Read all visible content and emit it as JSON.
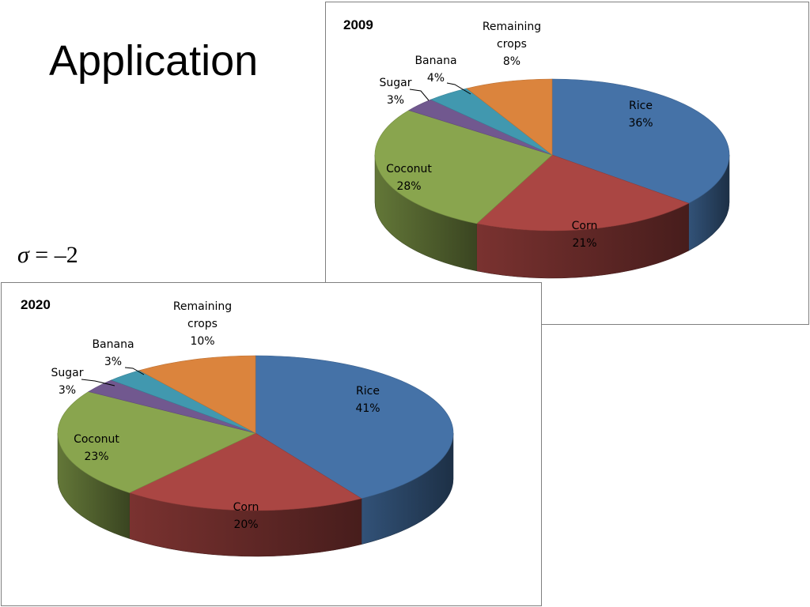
{
  "slide": {
    "title": "Application",
    "sigma_symbol": "σ",
    "sigma_rest": " = –2"
  },
  "chart_data": [
    {
      "type": "pie",
      "title": "2009",
      "style": "3d-pie",
      "legend": "none",
      "slices": [
        {
          "label": "Rice",
          "value": 36,
          "value_text": "36%",
          "color": "#4572A7"
        },
        {
          "label": "Corn",
          "value": 21,
          "value_text": "21%",
          "color": "#AA4643"
        },
        {
          "label": "Coconut",
          "value": 28,
          "value_text": "28%",
          "color": "#89A54E"
        },
        {
          "label": "Sugar",
          "value": 3,
          "value_text": "3%",
          "color": "#71588F"
        },
        {
          "label": "Banana",
          "value": 4,
          "value_text": "4%",
          "color": "#4198AF"
        },
        {
          "label": "Remaining crops",
          "value": 8,
          "value_text": "8%",
          "color": "#DB843D"
        }
      ]
    },
    {
      "type": "pie",
      "title": "2020",
      "style": "3d-pie",
      "legend": "none",
      "slices": [
        {
          "label": "Rice",
          "value": 41,
          "value_text": "41%",
          "color": "#4572A7"
        },
        {
          "label": "Corn",
          "value": 20,
          "value_text": "20%",
          "color": "#AA4643"
        },
        {
          "label": "Coconut",
          "value": 23,
          "value_text": "23%",
          "color": "#89A54E"
        },
        {
          "label": "Sugar",
          "value": 3,
          "value_text": "3%",
          "color": "#71588F"
        },
        {
          "label": "Banana",
          "value": 3,
          "value_text": "3%",
          "color": "#4198AF"
        },
        {
          "label": "Remaining crops",
          "value": 10,
          "value_text": "10%",
          "color": "#DB843D"
        }
      ]
    }
  ]
}
